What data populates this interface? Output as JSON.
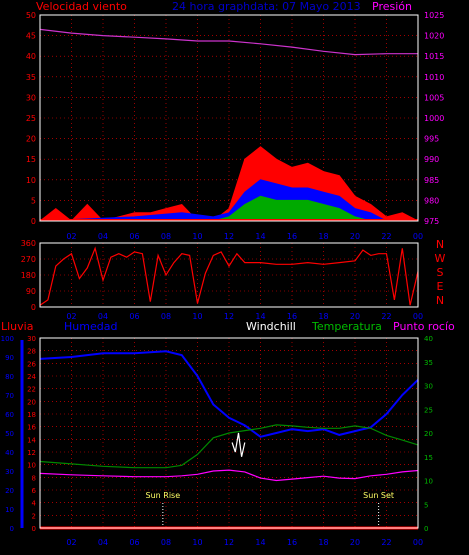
{
  "chart_data": [
    {
      "type": "line",
      "title": "24 hora graphdata: 07 Mayo 2013",
      "left_axis_label": "Velocidad viento",
      "right_axis_label": "Presión",
      "y_left_ticks": [
        "0",
        "5",
        "10",
        "15",
        "20",
        "25",
        "30",
        "35",
        "40",
        "45",
        "50"
      ],
      "y_left_range": [
        0,
        50
      ],
      "y_right_ticks": [
        "975",
        "980",
        "985",
        "990",
        "995",
        "1000",
        "1005",
        "1010",
        "1015",
        "1020",
        "1025"
      ],
      "y_right_range": [
        975,
        1025
      ],
      "x_ticks": [
        "02",
        "04",
        "06",
        "08",
        "10",
        "12",
        "14",
        "16",
        "18",
        "20",
        "22",
        "00"
      ],
      "grid": true,
      "colors": {
        "wind_gust": "#ff0000",
        "wind_avg": "#0000ff",
        "wind_low": "#00aa00",
        "pressure": "#cc33cc",
        "rain_base": "#ff0000"
      },
      "series": [
        {
          "key": "pressure",
          "x": [
            0,
            2,
            4,
            6,
            8,
            10,
            12,
            14,
            16,
            18,
            20,
            22,
            24
          ],
          "values": [
            1021.5,
            1020.6,
            1020.0,
            1019.6,
            1019.2,
            1018.7,
            1018.7,
            1018.0,
            1017.2,
            1016.2,
            1015.4,
            1015.6,
            1015.6
          ]
        },
        {
          "key": "wind_gust",
          "x": [
            0,
            1,
            2,
            3,
            4,
            5,
            6,
            7,
            8,
            9,
            10,
            11,
            12,
            13,
            14,
            15,
            16,
            17,
            18,
            19,
            20,
            21,
            22,
            23,
            24
          ],
          "values": [
            0,
            3,
            0,
            4,
            0,
            1,
            2,
            2,
            3,
            4,
            0,
            0,
            3,
            15,
            18,
            15,
            13,
            14,
            12,
            11,
            6,
            4,
            1,
            2,
            0
          ]
        },
        {
          "key": "wind_avg",
          "x": [
            0,
            6,
            9,
            11,
            12,
            13,
            14,
            15,
            16,
            17,
            18,
            19,
            20,
            21,
            22,
            24
          ],
          "values": [
            0,
            1,
            2,
            1,
            2,
            7,
            10,
            9,
            8,
            8,
            7,
            6,
            3,
            2,
            0,
            0
          ]
        },
        {
          "key": "wind_low",
          "x": [
            0,
            10,
            11,
            12,
            13,
            14,
            15,
            16,
            17,
            18,
            19,
            20,
            21,
            24
          ],
          "values": [
            0,
            0,
            0,
            1,
            4,
            6,
            5,
            5,
            5,
            4,
            3,
            1,
            0,
            0
          ]
        }
      ]
    },
    {
      "type": "line",
      "title": "",
      "y_ticks": [
        "360",
        "270",
        "180",
        "90",
        "0"
      ],
      "y_range": [
        0,
        360
      ],
      "direction_labels": [
        "N",
        "W",
        "S",
        "E",
        "N"
      ],
      "x_ticks": [
        "02",
        "04",
        "06",
        "08",
        "10",
        "12",
        "14",
        "16",
        "18",
        "20",
        "22",
        "00"
      ],
      "grid": true,
      "colors": {
        "direction": "#ff0000"
      },
      "series": [
        {
          "key": "wind_direction",
          "x": [
            0,
            0.5,
            1,
            1.5,
            2,
            2.5,
            3,
            3.5,
            4,
            4.5,
            5,
            5.5,
            6,
            6.5,
            7,
            7.5,
            8,
            8.5,
            9,
            9.5,
            10,
            10.5,
            11,
            11.5,
            12,
            12.5,
            13,
            14,
            15,
            16,
            17,
            18,
            19,
            20,
            20.5,
            21,
            21.5,
            22,
            22.5,
            23,
            23.5,
            24
          ],
          "values": [
            10,
            40,
            230,
            270,
            300,
            160,
            220,
            330,
            150,
            280,
            300,
            280,
            310,
            300,
            30,
            290,
            180,
            250,
            300,
            290,
            20,
            190,
            290,
            310,
            230,
            300,
            250,
            250,
            240,
            240,
            250,
            240,
            250,
            260,
            320,
            290,
            300,
            300,
            40,
            330,
            10,
            200
          ]
        }
      ]
    },
    {
      "type": "line",
      "title": "",
      "left_axis_label": "Lluvia",
      "legend": [
        "Humedad",
        "Windchill",
        "Temperatura",
        "Punto rocío"
      ],
      "outer_ticks": [
        "0",
        "10",
        "20",
        "30",
        "40",
        "50",
        "60",
        "70",
        "80",
        "90",
        "100"
      ],
      "y_left_ticks": [
        "0",
        "2",
        "4",
        "6",
        "8",
        "10",
        "12",
        "14",
        "16",
        "18",
        "20",
        "22",
        "24",
        "26",
        "28",
        "30"
      ],
      "y_left_range": [
        0,
        30
      ],
      "y_right_ticks": [
        "0",
        "5",
        "10",
        "15",
        "20",
        "25",
        "30",
        "35",
        "40"
      ],
      "y_right_range": [
        0,
        40
      ],
      "x_ticks": [
        "02",
        "04",
        "06",
        "08",
        "10",
        "12",
        "14",
        "16",
        "18",
        "20",
        "22",
        "00"
      ],
      "annotations": [
        "Sun Rise",
        "Sun Set"
      ],
      "grid": true,
      "colors": {
        "humidity": "#0000ff",
        "windchill": "#ffffff",
        "temperature": "#008800",
        "dewpoint": "#ff00ff",
        "rain": "#ff0000"
      },
      "series": [
        {
          "key": "humidity",
          "x": [
            0,
            2,
            4,
            6,
            8,
            9,
            10,
            11,
            12,
            13,
            14,
            15,
            16,
            17,
            18,
            19,
            20,
            21,
            22,
            23,
            24
          ],
          "values": [
            89,
            90,
            92,
            92,
            93,
            91,
            80,
            65,
            58,
            54,
            48,
            50,
            52,
            51,
            52,
            49,
            51,
            53,
            60,
            70,
            78
          ]
        },
        {
          "key": "temperature",
          "x": [
            0,
            2,
            4,
            6,
            8,
            9,
            10,
            11,
            12,
            13,
            14,
            15,
            16,
            17,
            18,
            19,
            20,
            21,
            22,
            23,
            24
          ],
          "values": [
            14,
            13.5,
            13,
            12.7,
            12.7,
            13.2,
            15.5,
            19,
            20,
            20.5,
            21,
            21.7,
            21.5,
            21.2,
            21,
            21,
            21.5,
            21,
            19.5,
            18.5,
            17.5
          ]
        },
        {
          "key": "dewpoint",
          "x": [
            0,
            2,
            4,
            6,
            8,
            9,
            10,
            11,
            12,
            13,
            14,
            15,
            16,
            17,
            18,
            19,
            20,
            21,
            22,
            23,
            24
          ],
          "values": [
            11.5,
            11.2,
            11,
            10.8,
            10.8,
            11,
            11.3,
            12,
            12.2,
            11.8,
            10.5,
            10,
            10.3,
            10.6,
            10.9,
            10.5,
            10.4,
            11,
            11.3,
            11.8,
            12.1
          ]
        },
        {
          "key": "windchill",
          "x": [
            12.2,
            12.4,
            12.6,
            12.8,
            13
          ],
          "values": [
            18,
            16,
            20,
            15,
            18
          ]
        },
        {
          "key": "rain",
          "x": [
            0,
            24
          ],
          "values": [
            0,
            0
          ]
        }
      ]
    }
  ]
}
